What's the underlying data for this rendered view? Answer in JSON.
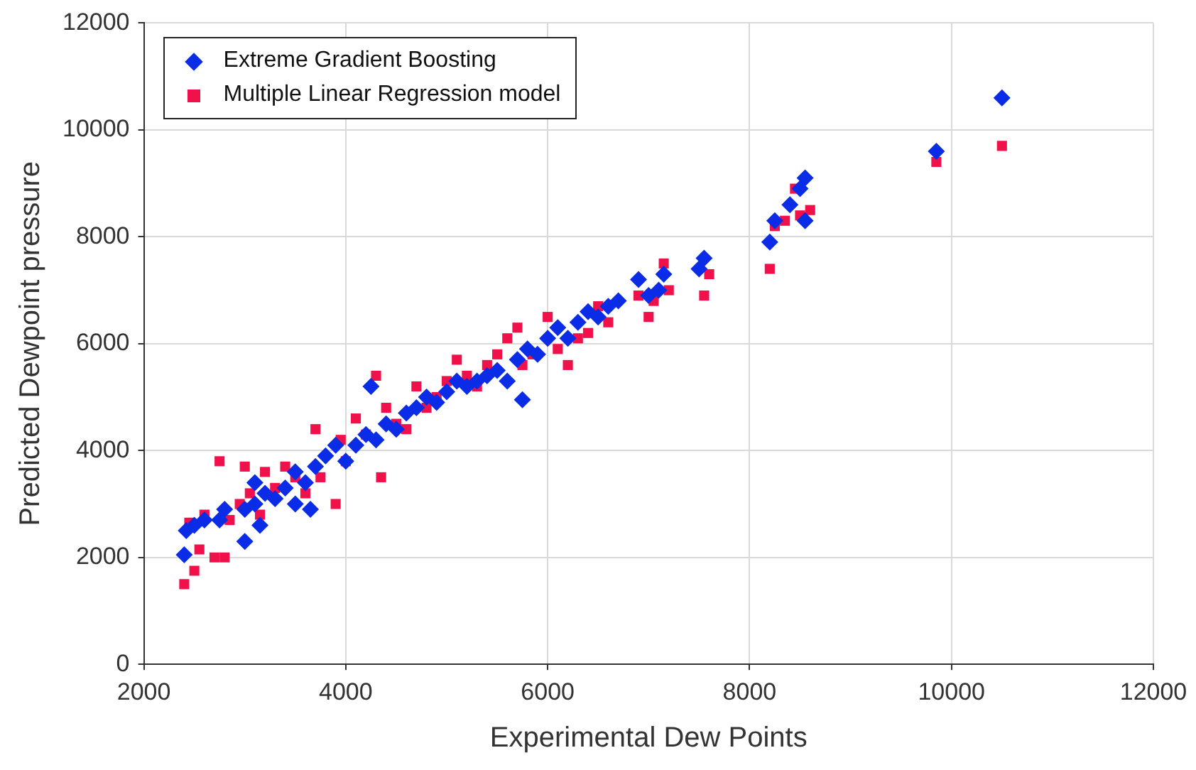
{
  "chart_data": {
    "type": "scatter",
    "xlabel": "Experimental Dew Points",
    "ylabel": "Predicted Dewpoint pressure",
    "xlim": [
      2000,
      12000
    ],
    "xticks": [
      2000,
      4000,
      6000,
      8000,
      10000,
      12000
    ],
    "ylim": [
      0,
      12000
    ],
    "yticks": [
      0,
      2000,
      4000,
      6000,
      8000,
      10000,
      12000
    ],
    "grid": true,
    "legend": "top left",
    "series": [
      {
        "name": "Extreme Gradient Boosting",
        "color": "#0a2ce6",
        "marker": "diamond",
        "x": [
          2400,
          2420,
          2500,
          2600,
          2750,
          2800,
          3000,
          3000,
          3100,
          3100,
          3150,
          3200,
          3300,
          3400,
          3500,
          3500,
          3600,
          3650,
          3700,
          3800,
          3900,
          4000,
          4100,
          4200,
          4250,
          4300,
          4400,
          4500,
          4600,
          4700,
          4800,
          4900,
          5000,
          5100,
          5200,
          5300,
          5400,
          5500,
          5600,
          5700,
          5750,
          5800,
          5900,
          6000,
          6100,
          6200,
          6300,
          6400,
          6500,
          6600,
          6700,
          6900,
          7000,
          7100,
          7150,
          7500,
          7550,
          8200,
          8250,
          8400,
          8500,
          8550,
          8550,
          9850,
          10500
        ],
        "values": [
          2050,
          2500,
          2600,
          2700,
          2700,
          2900,
          2300,
          2900,
          3000,
          3400,
          2600,
          3200,
          3100,
          3300,
          3000,
          3600,
          3400,
          2900,
          3700,
          3900,
          4100,
          3800,
          4100,
          4300,
          5200,
          4200,
          4500,
          4400,
          4700,
          4800,
          5000,
          4900,
          5100,
          5300,
          5200,
          5300,
          5400,
          5500,
          5300,
          5700,
          4950,
          5900,
          5800,
          6100,
          6300,
          6100,
          6400,
          6600,
          6500,
          6700,
          6800,
          7200,
          6900,
          7000,
          7300,
          7400,
          7600,
          7900,
          8300,
          8600,
          8900,
          9100,
          8300,
          9600,
          10600
        ]
      },
      {
        "name": "Multiple Linear Regression model",
        "color": "#f0104a",
        "marker": "square",
        "x": [
          2400,
          2450,
          2500,
          2550,
          2600,
          2700,
          2750,
          2800,
          2850,
          2950,
          3000,
          3050,
          3150,
          3200,
          3300,
          3400,
          3500,
          3600,
          3700,
          3750,
          3900,
          3950,
          4000,
          4100,
          4200,
          4300,
          4350,
          4400,
          4500,
          4600,
          4700,
          4800,
          4900,
          5000,
          5100,
          5200,
          5300,
          5400,
          5500,
          5600,
          5700,
          5750,
          5850,
          6000,
          6100,
          6200,
          6300,
          6400,
          6500,
          6600,
          6900,
          7000,
          7050,
          7150,
          7200,
          7550,
          7600,
          8200,
          8250,
          8350,
          8450,
          8500,
          8600,
          9850,
          10500
        ],
        "values": [
          1500,
          2650,
          1750,
          2150,
          2800,
          2000,
          3800,
          2000,
          2700,
          3000,
          3700,
          3200,
          2800,
          3600,
          3300,
          3700,
          3500,
          3200,
          4400,
          3500,
          3000,
          4200,
          3800,
          4600,
          4300,
          5400,
          3500,
          4800,
          4500,
          4400,
          5200,
          4800,
          5000,
          5300,
          5700,
          5400,
          5200,
          5600,
          5800,
          6100,
          6300,
          5600,
          5800,
          6500,
          5900,
          5600,
          6100,
          6200,
          6700,
          6400,
          6900,
          6500,
          6800,
          7500,
          7000,
          6900,
          7300,
          7400,
          8200,
          8300,
          8900,
          8400,
          8500,
          9400,
          9700
        ]
      }
    ]
  }
}
